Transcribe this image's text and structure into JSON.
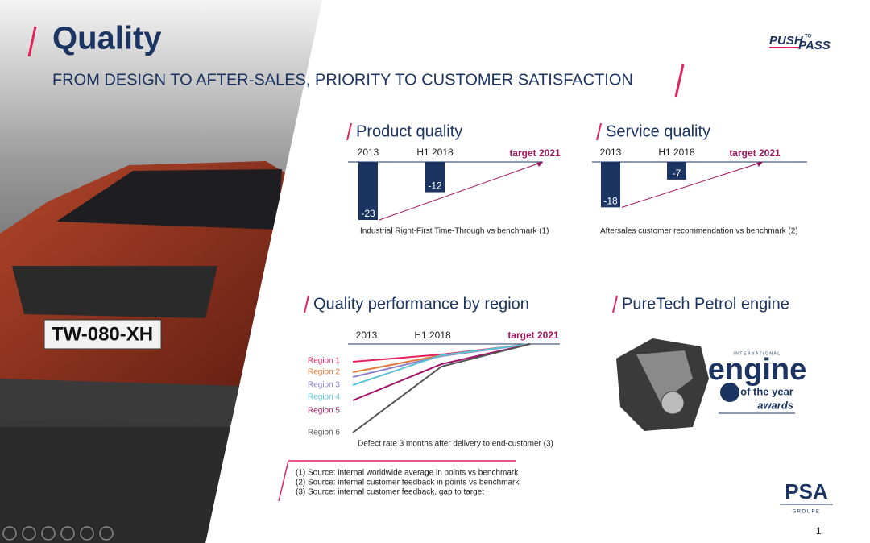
{
  "header": {
    "title": "Quality",
    "subtitle": "FROM DESIGN TO AFTER-SALES, PRIORITY TO CUSTOMER SATISFACTION",
    "logo_push": "PUSH",
    "logo_to": "TO",
    "logo_pass": "PASS"
  },
  "product_quality": {
    "title": "Product quality",
    "target_label": "target 2021",
    "caption": "Industrial Right-First Time-Through vs benchmark (1)",
    "chart_data": {
      "type": "bar",
      "categories": [
        "2013",
        "H1 2018"
      ],
      "values": [
        -23,
        -12
      ],
      "color": "#1c3461",
      "ylim": [
        -23,
        0
      ]
    }
  },
  "service_quality": {
    "title": "Service quality",
    "target_label": "target 2021",
    "caption": "Aftersales customer recommendation vs  benchmark (2)",
    "chart_data": {
      "type": "bar",
      "categories": [
        "2013",
        "H1 2018"
      ],
      "values": [
        -18,
        -7
      ],
      "color": "#1c3461",
      "ylim": [
        -23,
        0
      ]
    }
  },
  "region_quality": {
    "title": "Quality performance by region",
    "caption": "Defect rate 3 months after delivery to end-customer (3)",
    "chart_data": {
      "type": "line",
      "categories": [
        "2013",
        "H1 2018",
        "target 2021"
      ],
      "ylim": [
        -23,
        0
      ],
      "series": [
        {
          "name": "Region 1",
          "color": "#e0245e",
          "values": [
            -4.4,
            -2.6,
            0
          ]
        },
        {
          "name": "Region 2",
          "color": "#e07a3a",
          "values": [
            -7,
            -2.8,
            0
          ]
        },
        {
          "name": "Region 3",
          "color": "#8d80c9",
          "values": [
            -8.2,
            -3,
            0
          ]
        },
        {
          "name": "Region 4",
          "color": "#5cc4d6",
          "values": [
            -10.2,
            -2.8,
            0
          ]
        },
        {
          "name": "Region 5",
          "color": "#a0156a",
          "values": [
            -14,
            -5,
            0
          ]
        },
        {
          "name": "Region 6",
          "color": "#555555",
          "values": [
            -22,
            -5.6,
            0
          ]
        }
      ]
    }
  },
  "engine": {
    "title": "PureTech Petrol engine",
    "award_top": "INTERNATIONAL",
    "award_engine": "engine",
    "award_year": "of the year",
    "award_awards": "awards"
  },
  "footnotes": [
    "(1) Source: internal worldwide average in points vs benchmark",
    "(2) Source: internal customer feedback in points vs benchmark",
    "(3) Source: internal customer feedback, gap to target"
  ],
  "psa": {
    "name": "PSA",
    "groupe": "GROUPE"
  },
  "page_number": "1"
}
